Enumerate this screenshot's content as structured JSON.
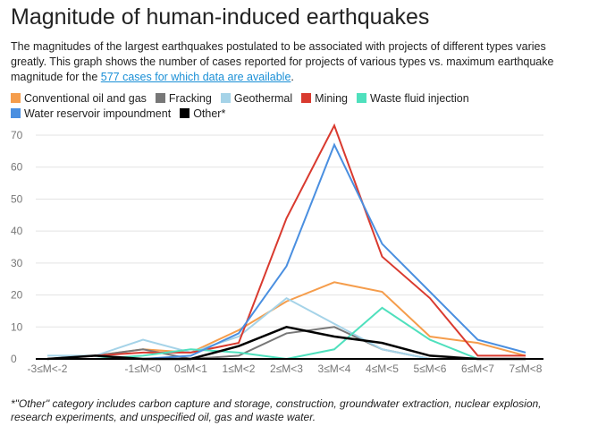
{
  "title": "Magnitude of human-induced earthquakes",
  "description": {
    "text_before": "The magnitudes of the largest earthquakes postulated to be associated with projects of different types varies greatly. This graph shows the number of cases reported for projects of various types vs. maximum earthquake magnitude for the ",
    "link": "577 cases for which data are available",
    "text_after": "."
  },
  "footnote": "*\"Other\" category includes carbon capture and storage, construction, groundwater extraction, nuclear explosion, research experiments, and unspecified oil, gas and waste water.",
  "chart_data": {
    "type": "line",
    "categories": [
      "-3≤M<-2",
      "",
      "-1≤M<0",
      "0≤M<1",
      "1≤M<2",
      "2≤M<3",
      "3≤M<4",
      "4≤M<5",
      "5≤M<6",
      "6≤M<7",
      "7≤M<8"
    ],
    "yticks": [
      0,
      10,
      20,
      30,
      40,
      50,
      60,
      70
    ],
    "ylim": [
      0,
      70
    ],
    "grid": true,
    "legend_placement": "top",
    "series": [
      {
        "name": "Conventional oil and gas",
        "color": "#f59d4c",
        "values": [
          0,
          1,
          3,
          2,
          9,
          18,
          24,
          21,
          7,
          5,
          1
        ]
      },
      {
        "name": "Fracking",
        "color": "#777777",
        "values": [
          0,
          1,
          3,
          0,
          1,
          8,
          10,
          3,
          0,
          0,
          0
        ]
      },
      {
        "name": "Geothermal",
        "color": "#a5d3e8",
        "values": [
          1,
          1,
          6,
          2,
          7,
          19,
          11,
          3,
          0,
          0,
          0
        ]
      },
      {
        "name": "Mining",
        "color": "#d93a2f",
        "values": [
          0,
          1,
          2,
          2,
          5,
          44,
          73,
          32,
          19,
          1,
          1
        ]
      },
      {
        "name": "Waste fluid injection",
        "color": "#4fe0bd",
        "values": [
          0,
          0,
          1,
          3,
          2,
          0,
          3,
          16,
          6,
          0,
          0
        ]
      },
      {
        "name": "Water reservoir impoundment",
        "color": "#4a8fe0",
        "values": [
          0,
          0,
          0,
          1,
          8,
          29,
          67,
          36,
          21,
          6,
          2
        ]
      },
      {
        "name": "Other*",
        "color": "#000000",
        "values": [
          0,
          1,
          0,
          0,
          4,
          10,
          7,
          5,
          1,
          0,
          0
        ]
      }
    ]
  }
}
